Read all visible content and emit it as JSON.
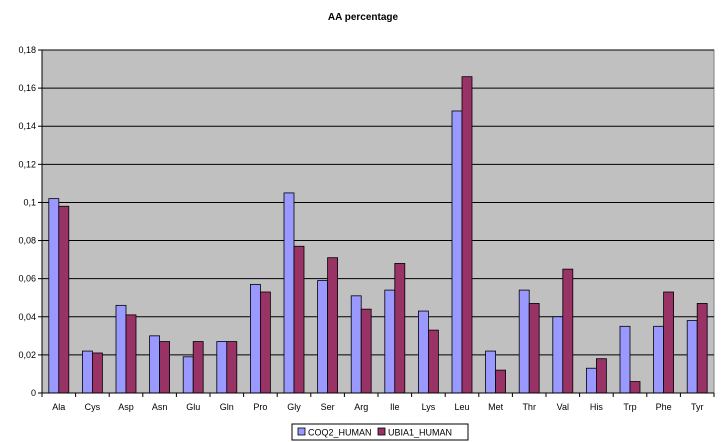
{
  "chart_data": {
    "type": "bar",
    "title": "AA percentage",
    "xlabel": "",
    "ylabel": "",
    "ylim": [
      0,
      0.18
    ],
    "y_ticks": [
      "0",
      "0,02",
      "0,04",
      "0,06",
      "0,08",
      "0,1",
      "0,12",
      "0,14",
      "0,16",
      "0,18"
    ],
    "y_tick_values": [
      0,
      0.02,
      0.04,
      0.06,
      0.08,
      0.1,
      0.12,
      0.14,
      0.16,
      0.18
    ],
    "grid": true,
    "legend_position": "bottom",
    "categories": [
      "Ala",
      "Cys",
      "Asp",
      "Asn",
      "Glu",
      "Gln",
      "Pro",
      "Gly",
      "Ser",
      "Arg",
      "Ile",
      "Lys",
      "Leu",
      "Met",
      "Thr",
      "Val",
      "His",
      "Trp",
      "Phe",
      "Tyr"
    ],
    "series": [
      {
        "name": "COQ2_HUMAN",
        "color": "#9999ff",
        "values": [
          0.102,
          0.022,
          0.046,
          0.03,
          0.019,
          0.027,
          0.057,
          0.105,
          0.059,
          0.051,
          0.054,
          0.043,
          0.148,
          0.022,
          0.054,
          0.04,
          0.013,
          0.035,
          0.035,
          0.038
        ]
      },
      {
        "name": "UBIA1_HUMAN",
        "color": "#993366",
        "values": [
          0.098,
          0.021,
          0.041,
          0.027,
          0.027,
          0.027,
          0.053,
          0.077,
          0.071,
          0.044,
          0.068,
          0.033,
          0.166,
          0.012,
          0.047,
          0.065,
          0.018,
          0.006,
          0.053,
          0.047
        ]
      }
    ],
    "plot_background": "#c0c0c0"
  }
}
